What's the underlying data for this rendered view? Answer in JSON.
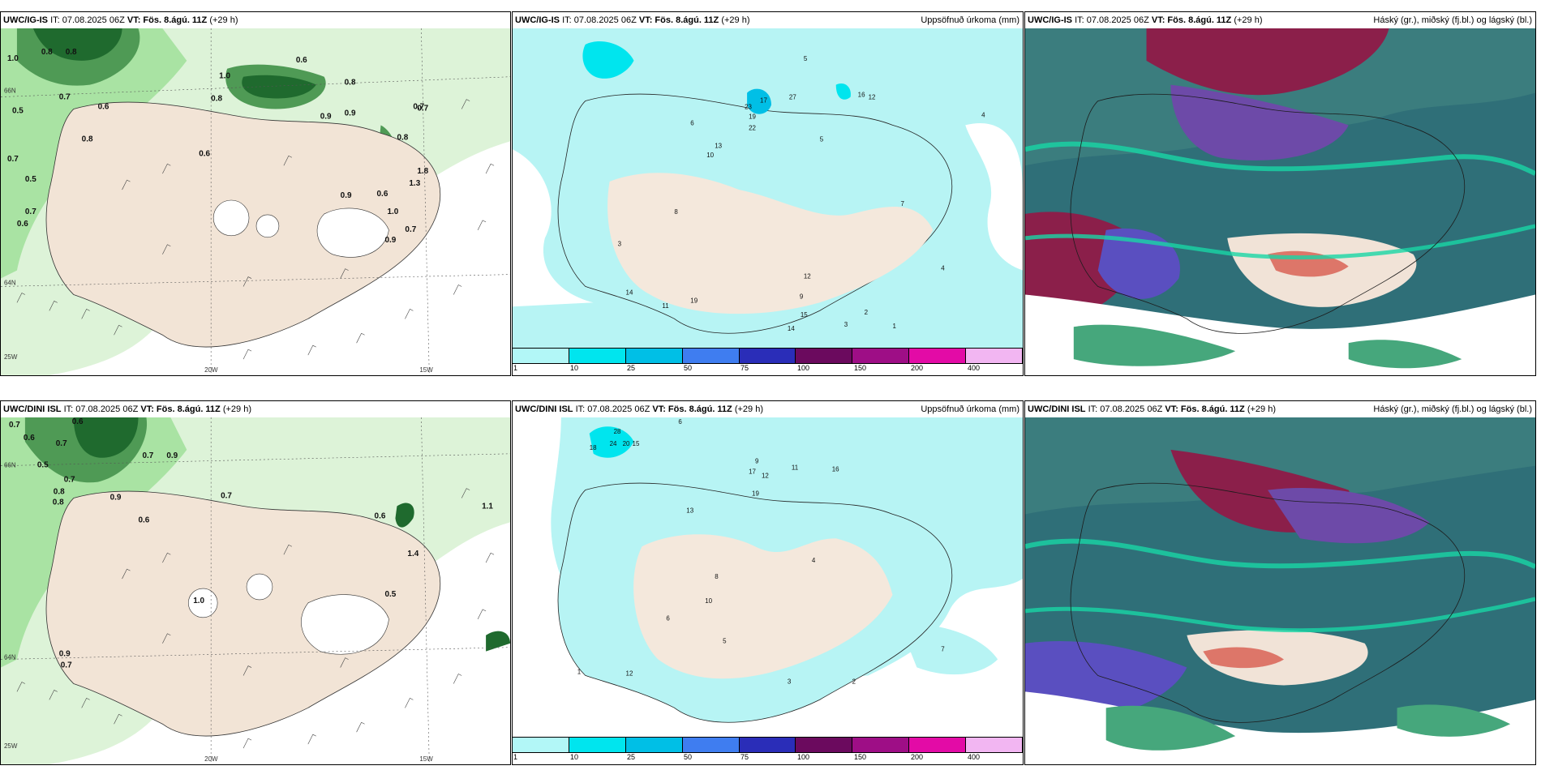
{
  "panels": {
    "ig_wind": {
      "model": "UWC/IG-IS",
      "it_label": "IT: 07.08.2025 06Z",
      "vt_label": "VT: Fös. 8.ágú. 11Z",
      "lead": "(+29 h)",
      "axis_lat_top": "66N",
      "axis_lat_mid": "64N",
      "axis_lon_left": "25W",
      "axis_lon_mid": "20W",
      "axis_lon_right": "15W",
      "values": [
        "1.0",
        "0.8",
        "0.8",
        "0.7",
        "0.6",
        "0.5",
        "0.7",
        "0.8",
        "0.5",
        "0.7",
        "0.6",
        "0.6",
        "1.0",
        "0.8",
        "0.9",
        "0.6",
        "0.7",
        "0.8",
        "0.9",
        "0.8",
        "1.8",
        "0.6",
        "0.9",
        "1.0",
        "0.7",
        "1.3",
        "0.9",
        "0.7"
      ]
    },
    "ig_precip": {
      "model": "UWC/IG-IS",
      "it_label": "IT: 07.08.2025 06Z",
      "vt_label": "VT: Fös. 8.ágú. 11Z",
      "lead": "(+29 h)",
      "title_right": "Uppsöfnuð úrkoma (mm)",
      "values": [
        "5",
        "4",
        "16",
        "12",
        "23",
        "27",
        "17",
        "19",
        "22",
        "10",
        "13",
        "14",
        "11",
        "9",
        "12",
        "15",
        "19",
        "14",
        "3",
        "2",
        "1",
        "4",
        "6",
        "8",
        "7",
        "5",
        "3"
      ]
    },
    "ig_cloud": {
      "model": "UWC/IG-IS",
      "it_label": "IT: 07.08.2025 06Z",
      "vt_label": "VT: Fös. 8.ágú. 11Z",
      "lead": "(+29 h)",
      "title_right": "Háský (gr.), miðský (fj.bl.) og lágský (bl.)"
    },
    "dini_wind": {
      "model": "UWC/DINI ISL",
      "it_label": "IT: 07.08.2025 06Z",
      "vt_label": "VT: Fös. 8.ágú. 11Z",
      "lead": "(+29 h)",
      "axis_lat_top": "66N",
      "axis_lat_mid": "64N",
      "axis_lon_left": "25W",
      "axis_lon_mid": "20W",
      "axis_lon_right": "15W",
      "values": [
        "0.7",
        "0.6",
        "0.6",
        "0.7",
        "0.5",
        "0.7",
        "0.8",
        "0.9",
        "0.6",
        "0.7",
        "0.9",
        "0.6",
        "0.7",
        "1.1",
        "1.4",
        "0.5",
        "1.0",
        "0.9",
        "0.7",
        "0.8"
      ]
    },
    "dini_precip": {
      "model": "UWC/DINI ISL",
      "it_label": "IT: 07.08.2025 06Z",
      "vt_label": "VT: Fös. 8.ágú. 11Z",
      "lead": "(+29 h)",
      "title_right": "Uppsöfnuð úrkoma (mm)",
      "values": [
        "6",
        "28",
        "24",
        "20",
        "15",
        "18",
        "17",
        "12",
        "19",
        "16",
        "9",
        "11",
        "13",
        "10",
        "8",
        "5",
        "4",
        "3",
        "2",
        "1",
        "7",
        "12",
        "6"
      ]
    },
    "dini_cloud": {
      "model": "UWC/DINI ISL",
      "it_label": "IT: 07.08.2025 06Z",
      "vt_label": "VT: Fös. 8.ágú. 11Z",
      "lead": "(+29 h)",
      "title_right": "Háský (gr.), miðský (fj.bl.) og lágský (bl.)"
    }
  },
  "legend": {
    "ticks": [
      "1",
      "10",
      "25",
      "50",
      "75",
      "100",
      "150",
      "200",
      "400"
    ],
    "colors": [
      "#b2f7f7",
      "#00e5ee",
      "#00bfe6",
      "#3f7df0",
      "#2a2db8",
      "#6b0a5e",
      "#9e0e86",
      "#e30ba6",
      "#f2b6f2"
    ]
  },
  "colors": {
    "land": "#f2e4d6",
    "sea_light": "#ddf3d8",
    "green_light": "#a9e3a3",
    "green_dark": "#1f6a2e",
    "precip_light": "#b7f4f4",
    "cloud_teal": "#2f6f78"
  }
}
